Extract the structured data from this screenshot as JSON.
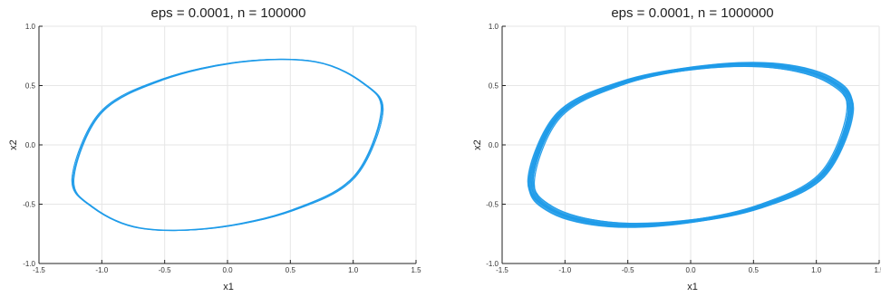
{
  "chart_data": [
    {
      "type": "line",
      "title": "eps = 0.0001, n = 100000",
      "xlabel": "x1",
      "ylabel": "x2",
      "xlim": [
        -1.5,
        1.5
      ],
      "ylim": [
        -1.0,
        1.0
      ],
      "xticks": [
        "-1.5",
        "-1.0",
        "-0.5",
        "0.0",
        "0.5",
        "1.0",
        "1.5"
      ],
      "yticks": [
        "-1.0",
        "-0.5",
        "0.0",
        "0.5",
        "1.0"
      ],
      "grid": true,
      "legend": "none",
      "color": "#1e9be9",
      "series": [
        {
          "kind": "closed-orbit",
          "loops": 5,
          "x": [
            1.23,
            1.08,
            0.7,
            0.11,
            -0.52,
            -1.01,
            -1.23,
            -1.08,
            -0.7,
            -0.11,
            0.52,
            1.01
          ],
          "y": [
            0.28,
            0.52,
            0.7,
            0.7,
            0.55,
            0.27,
            -0.28,
            -0.52,
            -0.7,
            -0.7,
            -0.55,
            -0.27
          ]
        }
      ]
    },
    {
      "type": "line",
      "title": "eps = 0.0001, n = 1000000",
      "xlabel": "x1",
      "ylabel": "x2",
      "xlim": [
        -1.5,
        1.5
      ],
      "ylim": [
        -1.0,
        1.0
      ],
      "xticks": [
        "-1.5",
        "-1.0",
        "-0.5",
        "0.0",
        "0.5",
        "1.0",
        "1.5"
      ],
      "yticks": [
        "-1.0",
        "-0.5",
        "0.0",
        "0.5",
        "1.0"
      ],
      "grid": true,
      "legend": "none",
      "color": "#1e9be9",
      "series": [
        {
          "kind": "closed-orbit",
          "loops": 18,
          "x": [
            1.27,
            1.1,
            0.65,
            0.05,
            -0.55,
            -1.05,
            -1.27,
            -1.1,
            -0.65,
            -0.05,
            0.55,
            1.05
          ],
          "y": [
            0.3,
            0.55,
            0.67,
            0.65,
            0.52,
            0.25,
            -0.3,
            -0.55,
            -0.67,
            -0.65,
            -0.52,
            -0.25
          ]
        }
      ]
    }
  ]
}
